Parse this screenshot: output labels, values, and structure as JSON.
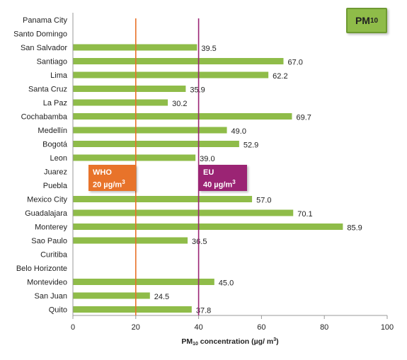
{
  "chart_data": {
    "type": "bar",
    "orientation": "horizontal",
    "categories": [
      "Panama City",
      "Santo Domingo",
      "San Salvador",
      "Santiago",
      "Lima",
      "Santa Cruz",
      "La Paz",
      "Cochabamba",
      "Medellín",
      "Bogotá",
      "Leon",
      "Juarez",
      "Puebla",
      "Mexico City",
      "Guadalajara",
      "Monterey",
      "Sao Paulo",
      "Curitiba",
      "Belo Horizonte",
      "Montevideo",
      "San Juan",
      "Quito"
    ],
    "values": [
      null,
      null,
      39.5,
      67.0,
      62.2,
      35.9,
      30.2,
      69.7,
      49.0,
      52.9,
      39.0,
      null,
      null,
      57.0,
      70.1,
      85.9,
      36.5,
      null,
      null,
      45.0,
      24.5,
      37.8
    ],
    "value_labels": [
      "",
      "",
      "39.5",
      "67.0",
      "62.2",
      "35.9",
      "30.2",
      "69.7",
      "49.0",
      "52.9",
      "39.0",
      "",
      "",
      "57.0",
      "70.1",
      "85.9",
      "36.5",
      "",
      "",
      "45.0",
      "24.5",
      "37.8"
    ],
    "xlim": [
      0,
      100
    ],
    "xticks": [
      0,
      20,
      40,
      60,
      80,
      100
    ],
    "xlabel_main": "PM",
    "xlabel_sub": "10",
    "xlabel_rest": " concentration (µg/ m",
    "xlabel_sup": "3",
    "xlabel_end": ")",
    "bar_color": "#8fbc49",
    "grid": false,
    "reference_lines": [
      {
        "name": "WHO",
        "value": 20,
        "label_line1": "WHO",
        "label_line2": "20 µg/m",
        "unit_sup": "3",
        "color": "#e8732a"
      },
      {
        "name": "EU",
        "value": 40,
        "label_line1": "EU",
        "label_line2": "40 µg/m",
        "unit_sup": "3",
        "color": "#9b2474"
      }
    ],
    "badge_main": "PM",
    "badge_sub": "10"
  }
}
